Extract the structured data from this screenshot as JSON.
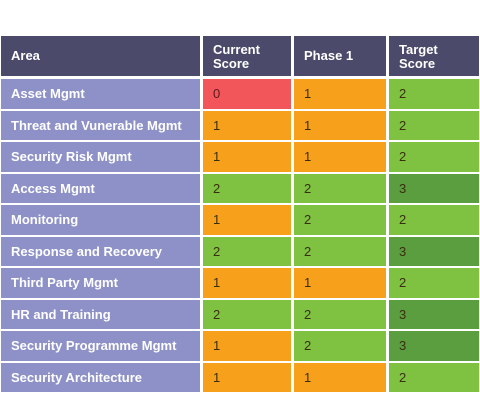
{
  "headers": {
    "area": "Area",
    "current_line1": "Current",
    "current_line2": "Score",
    "phase1": "Phase 1",
    "target_line1": "Target",
    "target_line2": "Score"
  },
  "colors": {
    "header_bg": "#4b4a6b",
    "area_bg": "#8e91c8",
    "score_0": "#f2555a",
    "score_1": "#f7a01c",
    "score_2": "#7fc241",
    "score_3": "#5a9e3f"
  },
  "rows": [
    {
      "area": "Asset Mgmt",
      "current": "0",
      "phase1": "1",
      "target": "2"
    },
    {
      "area": "Threat and Vunerable Mgmt",
      "current": "1",
      "phase1": "1",
      "target": "2"
    },
    {
      "area": "Security Risk Mgmt",
      "current": "1",
      "phase1": "1",
      "target": "2"
    },
    {
      "area": "Access Mgmt",
      "current": "2",
      "phase1": "2",
      "target": "3"
    },
    {
      "area": "Monitoring",
      "current": "1",
      "phase1": "2",
      "target": "2"
    },
    {
      "area": "Response and Recovery",
      "current": "2",
      "phase1": "2",
      "target": "3"
    },
    {
      "area": "Third Party Mgmt",
      "current": "1",
      "phase1": "1",
      "target": "2"
    },
    {
      "area": "HR and Training",
      "current": "2",
      "phase1": "2",
      "target": "3"
    },
    {
      "area": "Security Programme Mgmt",
      "current": "1",
      "phase1": "2",
      "target": "3"
    },
    {
      "area": "Security Architecture",
      "current": "1",
      "phase1": "1",
      "target": "2"
    }
  ]
}
